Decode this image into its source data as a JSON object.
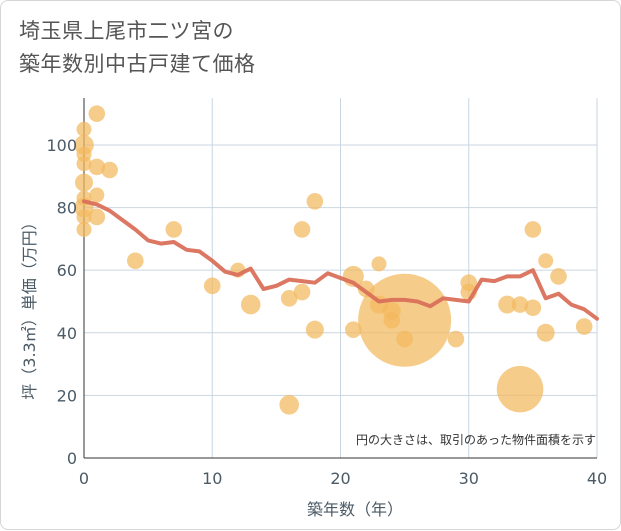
{
  "title_line1": "埼玉県上尾市二ツ宮の",
  "title_line2": "築年数別中古戸建て価格",
  "chart_data": {
    "type": "scatter",
    "title": "埼玉県上尾市二ツ宮の築年数別中古戸建て価格",
    "xlabel": "築年数（年）",
    "ylabel": "坪（3.3㎡）単価（万円）",
    "note": "円の大きさは、取引のあった物件面積を示す",
    "xlim": [
      0,
      40
    ],
    "ylim": [
      0,
      115
    ],
    "x_ticks": [
      "0",
      "10",
      "20",
      "30",
      "40"
    ],
    "y_ticks": [
      "0",
      "20",
      "40",
      "60",
      "80",
      "100"
    ],
    "grid": true,
    "colors": {
      "bubble": "#f3b85e",
      "line": "#d9705a",
      "grid": "#c9d6e0"
    },
    "bubbles": [
      {
        "x": 0,
        "y": 105,
        "s": 1
      },
      {
        "x": 0,
        "y": 100,
        "s": 1.3
      },
      {
        "x": 0,
        "y": 97,
        "s": 1
      },
      {
        "x": 0,
        "y": 94,
        "s": 1
      },
      {
        "x": 0,
        "y": 88,
        "s": 1.2
      },
      {
        "x": 0,
        "y": 83,
        "s": 1
      },
      {
        "x": 0,
        "y": 80,
        "s": 1.3
      },
      {
        "x": 0,
        "y": 77,
        "s": 1
      },
      {
        "x": 0,
        "y": 73,
        "s": 1
      },
      {
        "x": 1,
        "y": 110,
        "s": 1.1
      },
      {
        "x": 1,
        "y": 93,
        "s": 1.1
      },
      {
        "x": 1,
        "y": 84,
        "s": 1
      },
      {
        "x": 1,
        "y": 77,
        "s": 1.1
      },
      {
        "x": 2,
        "y": 92,
        "s": 1.1
      },
      {
        "x": 4,
        "y": 63,
        "s": 1.1
      },
      {
        "x": 7,
        "y": 73,
        "s": 1.1
      },
      {
        "x": 10,
        "y": 55,
        "s": 1.1
      },
      {
        "x": 12,
        "y": 60,
        "s": 1
      },
      {
        "x": 13,
        "y": 49,
        "s": 1.3
      },
      {
        "x": 16,
        "y": 51,
        "s": 1.1
      },
      {
        "x": 16,
        "y": 17,
        "s": 1.3
      },
      {
        "x": 17,
        "y": 73,
        "s": 1.1
      },
      {
        "x": 17,
        "y": 53,
        "s": 1.1
      },
      {
        "x": 18,
        "y": 82,
        "s": 1.1
      },
      {
        "x": 18,
        "y": 41,
        "s": 1.2
      },
      {
        "x": 21,
        "y": 58,
        "s": 1.4
      },
      {
        "x": 21,
        "y": 41,
        "s": 1.1
      },
      {
        "x": 22,
        "y": 54,
        "s": 1.1
      },
      {
        "x": 23,
        "y": 62,
        "s": 1
      },
      {
        "x": 23,
        "y": 49,
        "s": 1.2
      },
      {
        "x": 24,
        "y": 47,
        "s": 1.2
      },
      {
        "x": 24,
        "y": 44,
        "s": 1.1
      },
      {
        "x": 25,
        "y": 44,
        "s": 6.2
      },
      {
        "x": 25,
        "y": 38,
        "s": 1.1
      },
      {
        "x": 29,
        "y": 38,
        "s": 1.1
      },
      {
        "x": 30,
        "y": 56,
        "s": 1.1
      },
      {
        "x": 30,
        "y": 53,
        "s": 1.1
      },
      {
        "x": 33,
        "y": 49,
        "s": 1.2
      },
      {
        "x": 34,
        "y": 49,
        "s": 1.1
      },
      {
        "x": 34,
        "y": 22,
        "s": 3.1
      },
      {
        "x": 35,
        "y": 73,
        "s": 1.1
      },
      {
        "x": 35,
        "y": 48,
        "s": 1.1
      },
      {
        "x": 36,
        "y": 63,
        "s": 1
      },
      {
        "x": 36,
        "y": 40,
        "s": 1.2
      },
      {
        "x": 37,
        "y": 58,
        "s": 1.1
      },
      {
        "x": 39,
        "y": 42,
        "s": 1.1
      }
    ],
    "trend": {
      "x": [
        0,
        1,
        2,
        3,
        4,
        5,
        6,
        7,
        8,
        9,
        10,
        11,
        12,
        13,
        14,
        15,
        16,
        17,
        18,
        19,
        20,
        21,
        22,
        23,
        24,
        25,
        26,
        27,
        28,
        29,
        30,
        31,
        32,
        33,
        34,
        35,
        36,
        37,
        38,
        39,
        40
      ],
      "y": [
        82,
        81,
        79,
        76,
        73,
        69.5,
        68.5,
        69,
        66.5,
        66,
        63,
        59.5,
        58.5,
        60.5,
        54,
        55,
        57,
        56.5,
        56,
        59,
        57.5,
        56,
        53,
        50,
        50.5,
        50.5,
        50,
        48.5,
        51,
        50.5,
        50,
        57,
        56.5,
        58,
        58,
        60,
        51,
        52.5,
        49,
        47.5,
        44.5
      ]
    }
  }
}
